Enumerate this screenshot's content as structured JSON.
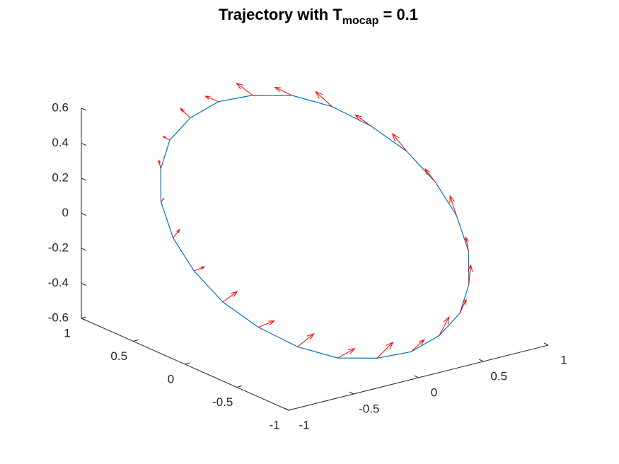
{
  "chart_data": {
    "type": "line3d",
    "title": "Trajectory with T",
    "title_subscript": "mocap",
    "title_suffix": " = 0.1",
    "xlim": [
      -1,
      1
    ],
    "xticks": [
      -1,
      -0.5,
      0,
      0.5,
      1
    ],
    "ylim": [
      -1,
      1
    ],
    "yticks": [
      -1,
      -0.5,
      0,
      0.5,
      1
    ],
    "zlim": [
      -0.6,
      0.6
    ],
    "zticks": [
      -0.6,
      -0.4,
      -0.2,
      0,
      0.2,
      0.4,
      0.6
    ],
    "series": [
      {
        "type": "line3d",
        "color": "#0072bd",
        "x": [
          0.93,
          0.9,
          0.81,
          0.66,
          0.47,
          0.24,
          0,
          -0.24,
          -0.47,
          -0.66,
          -0.81,
          -0.9,
          -0.93,
          -0.9,
          -0.81,
          -0.66,
          -0.47,
          -0.24,
          0,
          0.24,
          0.47,
          0.66,
          0.81,
          0.9,
          0.93
        ],
        "y": [
          0,
          0.24,
          0.47,
          0.66,
          0.81,
          0.9,
          0.93,
          0.9,
          0.81,
          0.66,
          0.47,
          0.24,
          0,
          -0.24,
          -0.47,
          -0.66,
          -0.81,
          -0.9,
          -0.93,
          -0.9,
          -0.81,
          -0.66,
          -0.47,
          -0.24,
          0
        ],
        "z": [
          0.08,
          0.2,
          0.3,
          0.39,
          0.45,
          0.47,
          0.47,
          0.43,
          0.37,
          0.28,
          0.17,
          0.04,
          -0.08,
          -0.2,
          -0.3,
          -0.39,
          -0.45,
          -0.47,
          -0.47,
          -0.43,
          -0.37,
          -0.28,
          -0.17,
          -0.04,
          0.08
        ]
      },
      {
        "type": "quiver3d",
        "color": "#ff0000",
        "u": [
          0,
          -0.03,
          -0.05,
          -0.07,
          -0.09,
          -0.1,
          -0.1,
          -0.1,
          -0.09,
          -0.07,
          -0.05,
          -0.03,
          0,
          0.03,
          0.05,
          0.07,
          0.09,
          0.1,
          0.1,
          0.1,
          0.09,
          0.07,
          0.05,
          0.03
        ],
        "v": [
          0.1,
          0.1,
          0.09,
          0.07,
          0.05,
          0.03,
          0,
          -0.03,
          -0.05,
          -0.07,
          -0.09,
          -0.1,
          -0.1,
          -0.1,
          -0.09,
          -0.07,
          -0.05,
          -0.03,
          0,
          0.03,
          0.05,
          0.07,
          0.09,
          0.1
        ],
        "w": [
          0.05,
          0.08,
          0.05,
          0.08,
          0.05,
          0.08,
          0.05,
          0.08,
          0.05,
          0.08,
          0.05,
          0.08,
          0.05,
          0.08,
          0.05,
          0.08,
          0.05,
          0.08,
          0.05,
          0.08,
          0.05,
          0.08,
          0.05,
          0.08
        ]
      }
    ]
  }
}
